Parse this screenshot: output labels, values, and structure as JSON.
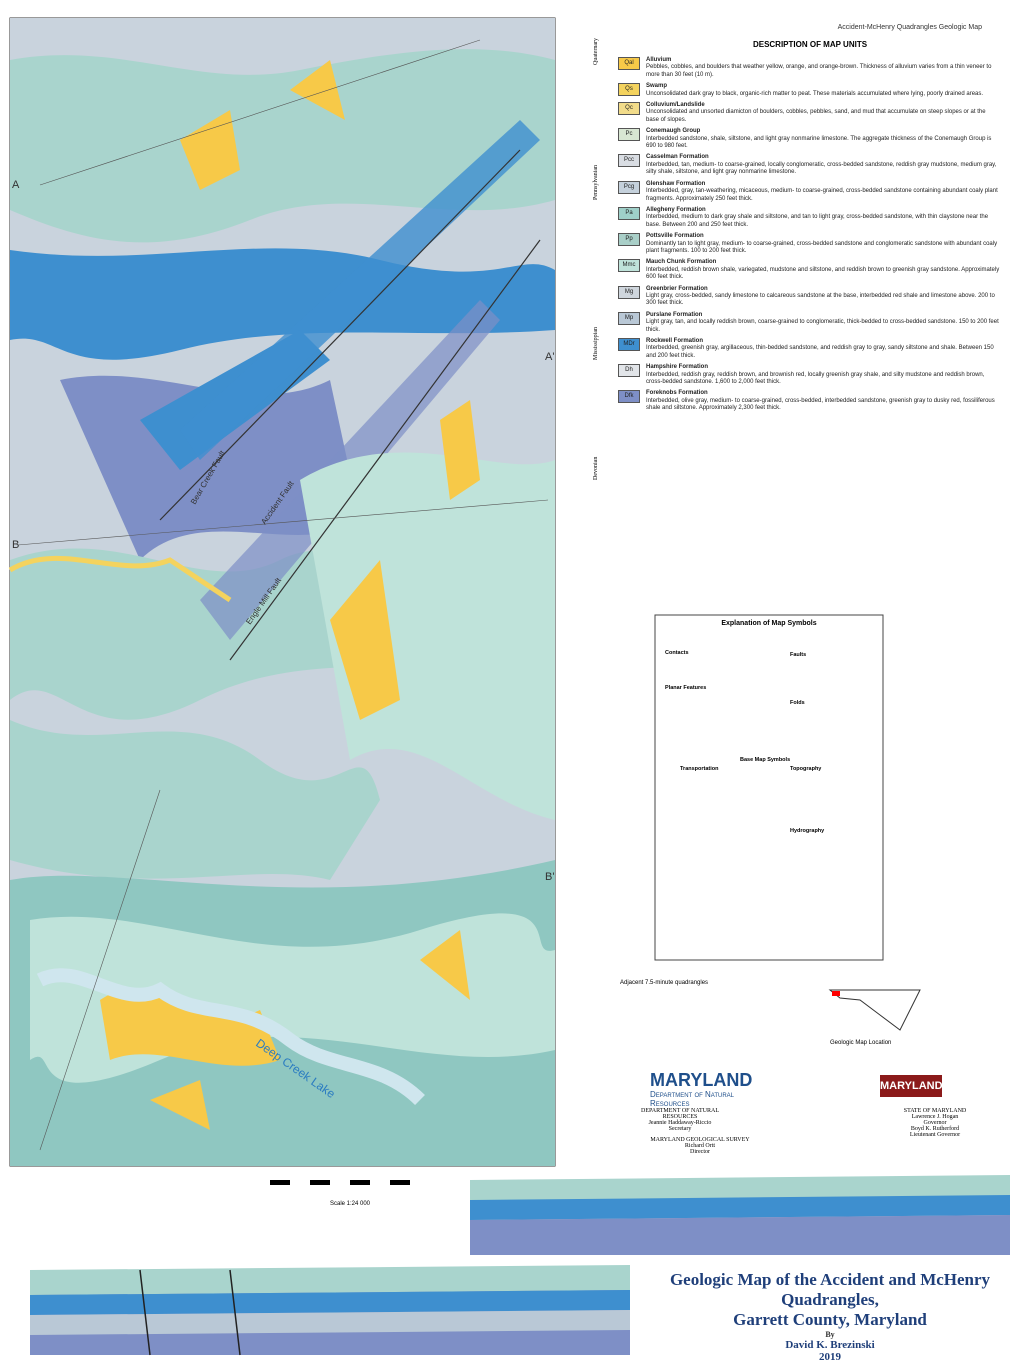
{
  "header": {
    "top_right": "Accident-McHenry Quadrangles Geologic Map"
  },
  "map": {
    "labels": {
      "lake": "Deep Creek Lake",
      "fault1": "Bear Creek Fault",
      "fault2": "Accident Fault",
      "fault3": "Engle Mill Fault",
      "a": "A",
      "a2": "A'",
      "b": "B",
      "b2": "B'"
    }
  },
  "units": {
    "title": "DESCRIPTION OF MAP UNITS",
    "ages": [
      "Quaternary",
      "Pennsylvanian",
      "Mississippian",
      "Devonian"
    ],
    "items": [
      {
        "symbol": "Qal",
        "name": "Alluvium",
        "color": "#f7c948",
        "text": "Pebbles, cobbles, and boulders that weather yellow, orange, and orange-brown. Thickness of alluvium varies from a thin veneer to more than 30 feet (10 m)."
      },
      {
        "symbol": "Qs",
        "name": "Swamp",
        "color": "#f4d35e",
        "text": "Unconsolidated dark gray to black, organic-rich matter to peat. These materials accumulated where lying, poorly drained areas."
      },
      {
        "symbol": "Qc",
        "name": "Colluvium/Landslide",
        "color": "#f2dc8a",
        "text": "Unconsolidated and unsorted diamicton of boulders, cobbles, pebbles, sand, and mud that accumulate on steep slopes or at the base of slopes."
      },
      {
        "symbol": "Pc",
        "name": "Conemaugh Group",
        "color": "#d8e6d2",
        "text": "Interbedded sandstone, shale, siltstone, and light gray nonmarine limestone. The aggregate thickness of the Conemaugh Group is 690 to 980 feet."
      },
      {
        "symbol": "Pcc",
        "name": "Casselman Formation",
        "color": "#d9dde3",
        "text": "Interbedded, tan, medium- to coarse-grained, locally conglomeratic, cross-bedded sandstone, reddish gray mudstone, medium gray, silty shale, siltstone, and light gray nonmarine limestone."
      },
      {
        "symbol": "Pcg",
        "name": "Glenshaw Formation",
        "color": "#c5d1dc",
        "text": "Interbedded, gray, tan-weathering, micaceous, medium- to coarse-grained, cross-bedded sandstone containing abundant coaly plant fragments. Approximately 250 feet thick."
      },
      {
        "symbol": "Pa",
        "name": "Allegheny Formation",
        "color": "#9fd0c9",
        "text": "Interbedded, medium to dark gray shale and siltstone, and tan to light gray, cross-bedded sandstone, with thin claystone near the base. Between 200 and 250 feet thick."
      },
      {
        "symbol": "Pp",
        "name": "Pottsville Formation",
        "color": "#a9cfc8",
        "text": "Dominantly tan to light gray, medium- to coarse-grained, cross-bedded sandstone and conglomeratic sandstone with abundant coaly plant fragments. 100 to 200 feet thick."
      },
      {
        "symbol": "Mmc",
        "name": "Mauch Chunk Formation",
        "color": "#bfe3da",
        "text": "Interbedded, reddish brown shale, variegated, mudstone and siltstone, and reddish brown to greenish gray sandstone. Approximately 600 feet thick."
      },
      {
        "symbol": "Mg",
        "name": "Greenbrier Formation",
        "color": "#cfd6dd",
        "text": "Light gray, cross-bedded, sandy limestone to calcareous sandstone at the base, interbedded red shale and limestone above. 200 to 300 feet thick."
      },
      {
        "symbol": "Mp",
        "name": "Purslane Formation",
        "color": "#b9c8d6",
        "text": "Light gray, tan, and locally reddish brown, coarse-grained to conglomeratic, thick-bedded to cross-bedded sandstone. 150 to 200 feet thick."
      },
      {
        "symbol": "MDr",
        "name": "Rockwell Formation",
        "color": "#3e8fcf",
        "text": "Interbedded, greenish gray, argillaceous, thin-bedded sandstone, and reddish gray to gray, sandy siltstone and shale. Between 150 and 200 feet thick."
      },
      {
        "symbol": "Dh",
        "name": "Hampshire Formation",
        "color": "#e2e5e9",
        "text": "Interbedded, reddish gray, reddish brown, and brownish red, locally greenish gray shale, and silty mudstone and reddish brown, cross-bedded sandstone. 1,600 to 2,000 feet thick."
      },
      {
        "symbol": "Dfk",
        "name": "Foreknobs Formation",
        "color": "#7e8fc6",
        "text": "Interbedded, olive gray, medium- to coarse-grained, cross-bedded, interbedded sandstone, greenish gray to dusky red, fossiliferous shale and siltstone. Approximately 2,300 feet thick."
      }
    ]
  },
  "symbols": {
    "title": "Explanation of Map Symbols",
    "sections": [
      "Contacts",
      "Faults",
      "Planar Features",
      "Folds",
      "Base Map Symbols",
      "Transportation",
      "Topography",
      "Hydrography"
    ]
  },
  "locator": {
    "adjacent": "Adjacent 7.5-minute quadrangles",
    "location": "Geologic Map Location"
  },
  "agency": {
    "logo": "MARYLAND",
    "dept": "Department of Natural Resources",
    "left": [
      "DEPARTMENT OF NATURAL RESOURCES",
      "Jeannie Haddaway-Riccio",
      "Secretary"
    ],
    "right": [
      "STATE OF MARYLAND",
      "Lawrence J. Hogan",
      "Governor",
      "Boyd K. Rutherford",
      "Lieutenant Governor"
    ],
    "survey": [
      "MARYLAND GEOLOGICAL SURVEY",
      "Richard Ortt",
      "Director"
    ],
    "seal": "MARYLAND"
  },
  "scale": "Scale 1:24 000",
  "title": {
    "line1": "Geologic  Map of the Accident and McHenry Quadrangles,",
    "line2": "Garrett County, Maryland",
    "by": "By",
    "author": "David K. Brezinski",
    "year": "2019"
  }
}
